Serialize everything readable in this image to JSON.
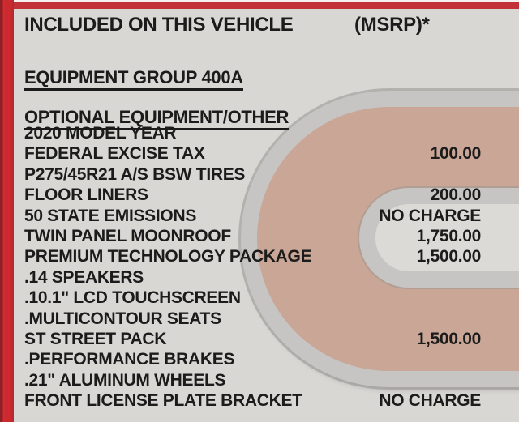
{
  "header": {
    "title": "INCLUDED ON THIS VEHICLE",
    "msrp_label": "(MSRP)*"
  },
  "equipment_group_heading": "EQUIPMENT GROUP 400A",
  "optional_heading": "OPTIONAL EQUIPMENT/OTHER",
  "items": [
    {
      "label": "2020 MODEL YEAR",
      "price": ""
    },
    {
      "label": "FEDERAL EXCISE TAX",
      "price": "100.00"
    },
    {
      "label": "P275/45R21 A/S BSW TIRES",
      "price": ""
    },
    {
      "label": "FLOOR LINERS",
      "price": "200.00"
    },
    {
      "label": "50 STATE EMISSIONS",
      "price": "NO CHARGE"
    },
    {
      "label": "TWIN PANEL MOONROOF",
      "price": "1,750.00"
    },
    {
      "label": "PREMIUM TECHNOLOGY PACKAGE",
      "price": "1,500.00"
    },
    {
      "label": ".14 SPEAKERS",
      "price": ""
    },
    {
      "label": ".10.1\" LCD TOUCHSCREEN",
      "price": ""
    },
    {
      "label": ".MULTICONTOUR SEATS",
      "price": ""
    },
    {
      "label": "ST STREET PACK",
      "price": "1,500.00"
    },
    {
      "label": ".PERFORMANCE BRAKES",
      "price": ""
    },
    {
      "label": ".21\" ALUMINUM WHEELS",
      "price": ""
    },
    {
      "label": "FRONT LICENSE PLATE BRACKET",
      "price": "NO CHARGE"
    }
  ],
  "colors": {
    "accent_red": "#c4282e",
    "background": "#d8d7d4",
    "watermark_fill": "#c9a696",
    "watermark_outline": "#c6c5c3",
    "text": "#1b1b1b"
  }
}
